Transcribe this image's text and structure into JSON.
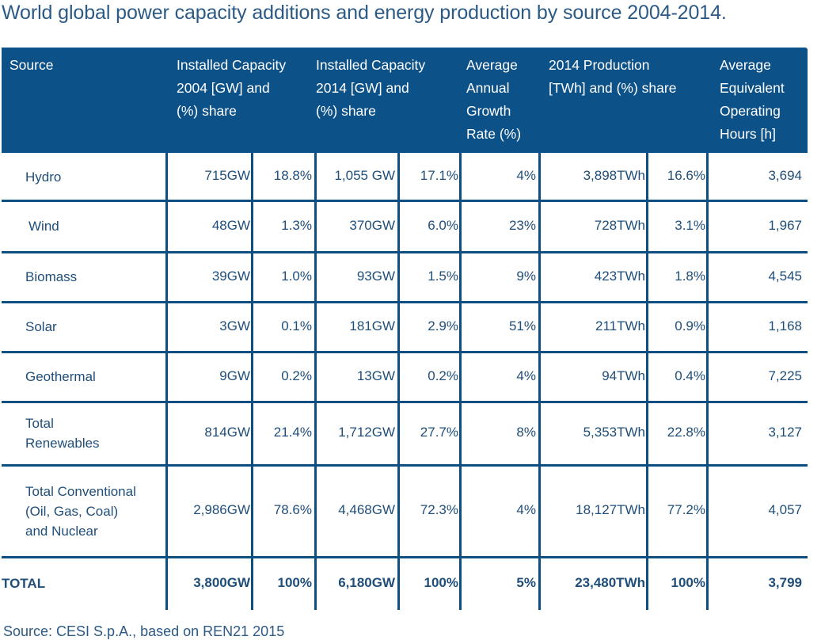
{
  "title": "World global power capacity additions and energy production by source 2004-2014.",
  "header": {
    "source": "Source",
    "cap2004": "Installed Capacity\n2004  [GW] and\n(%) share",
    "cap2014": "Installed Capacity\n2014 [GW] and\n(%) share",
    "growth": "Average\nAnnual\nGrowth\nRate (%)",
    "prod2014": "2014 Production\n[TWh] and (%) share",
    "hours": "Average\n Equivalent\nOperating\nHours [h]"
  },
  "rows": [
    {
      "source": "Hydro",
      "cap2004": "715GW",
      "cap2004_share": "18.8%",
      "cap2014": "1,055 GW",
      "cap2014_share": "17.1%",
      "growth": "4%",
      "prod": "3,898TWh",
      "prod_share": "16.6%",
      "hours": "3,694"
    },
    {
      "source": " Wind",
      "cap2004": "48GW",
      "cap2004_share": "1.3%",
      "cap2014": "370GW",
      "cap2014_share": "6.0%",
      "growth": "23%",
      "prod": "728TWh",
      "prod_share": "3.1%",
      "hours": "1,967"
    },
    {
      "source": "Biomass",
      "cap2004": "39GW",
      "cap2004_share": "1.0%",
      "cap2014": "93GW",
      "cap2014_share": "1.5%",
      "growth": "9%",
      "prod": "423TWh",
      "prod_share": "1.8%",
      "hours": "4,545"
    },
    {
      "source": "Solar",
      "cap2004": "3GW",
      "cap2004_share": "0.1%",
      "cap2014": "181GW",
      "cap2014_share": "2.9%",
      "growth": "51%",
      "prod": "211TWh",
      "prod_share": "0.9%",
      "hours": "1,168"
    },
    {
      "source": "Geothermal",
      "cap2004": "9GW",
      "cap2004_share": "0.2%",
      "cap2014": "13GW",
      "cap2014_share": "0.2%",
      "growth": "4%",
      "prod": "94TWh",
      "prod_share": "0.4%",
      "hours": "7,225"
    },
    {
      "source": "Total\nRenewables",
      "cap2004": "814GW",
      "cap2004_share": "21.4%",
      "cap2014": "1,712GW",
      "cap2014_share": "27.7%",
      "growth": "8%",
      "prod": "5,353TWh",
      "prod_share": "22.8%",
      "hours": "3,127"
    },
    {
      "source": "Total Conventional\n(Oil, Gas, Coal)\nand Nuclear",
      "cap2004": "2,986GW",
      "cap2004_share": "78.6%",
      "cap2014": "4,468GW",
      "cap2014_share": "72.3%",
      "growth": "4%",
      "prod": "18,127TWh",
      "prod_share": "77.2%",
      "hours": "4,057"
    },
    {
      "source": "TOTAL",
      "cap2004": "3,800GW",
      "cap2004_share": "100%",
      "cap2014": "6,180GW",
      "cap2014_share": "100%",
      "growth": "5%",
      "prod": "23,480TWh",
      "prod_share": "100%",
      "hours": "3,799"
    }
  ],
  "footer": {
    "source_note": "Source: CESI S.p.A., based on REN21 2015"
  },
  "colors": {
    "header_bg": "#0d5189",
    "text": "#1f4e79",
    "grid": "#0d4f80"
  }
}
